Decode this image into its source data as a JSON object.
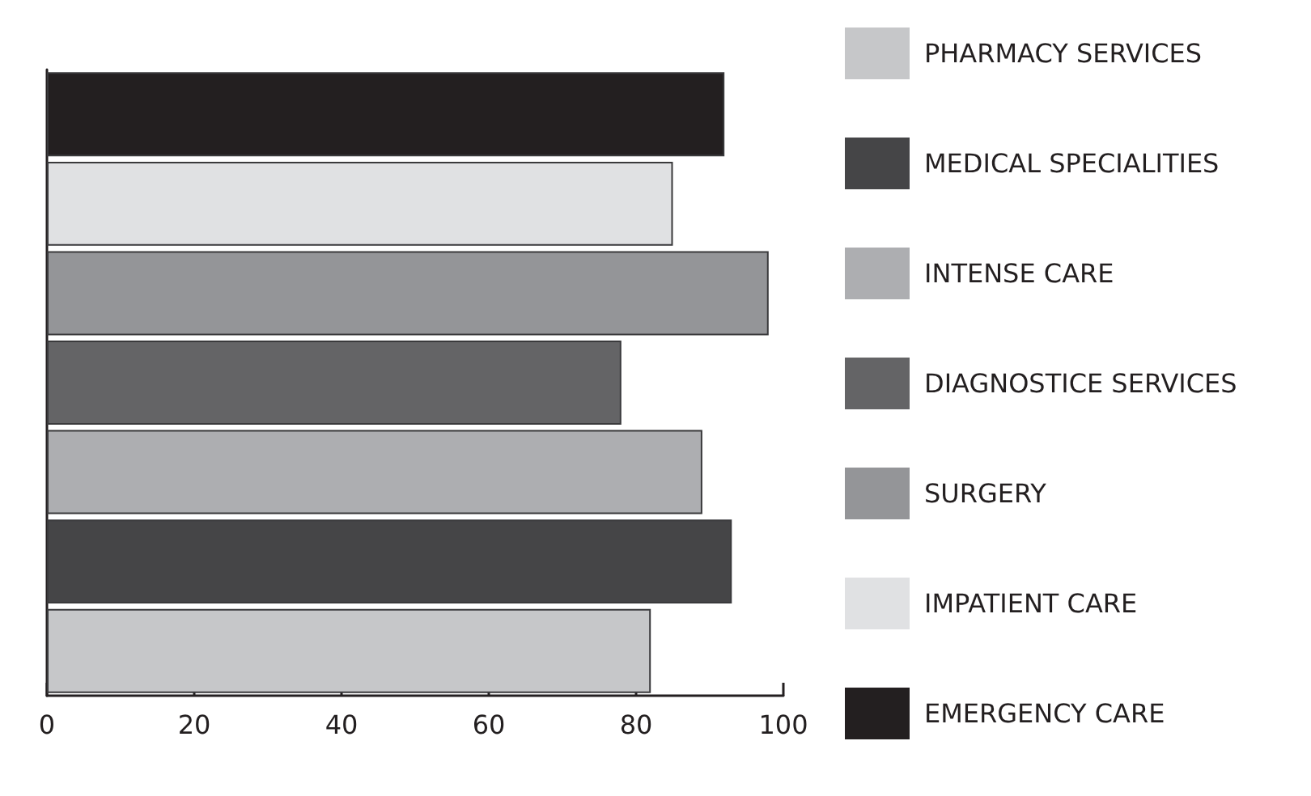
{
  "chart_data": {
    "type": "bar",
    "orientation": "horizontal",
    "categories": [
      null,
      null,
      null,
      null,
      null,
      null,
      null
    ],
    "series": [
      {
        "name": "PHARMACY SERVICES",
        "color": "#c6c7c9",
        "values": [
          null,
          null,
          null,
          null,
          null,
          null,
          82
        ]
      },
      {
        "name": "MEDICAL SPECIALITIES",
        "color": "#454547",
        "values": [
          null,
          null,
          null,
          null,
          null,
          93,
          null
        ]
      },
      {
        "name": "INTENSE CARE",
        "color": "#adaeb1",
        "values": [
          null,
          null,
          null,
          null,
          89,
          null,
          null
        ]
      },
      {
        "name": "DIAGNOSTICE SERVICES",
        "color": "#646466",
        "values": [
          null,
          null,
          null,
          78,
          null,
          null,
          null
        ]
      },
      {
        "name": "SURGERY",
        "color": "#949598",
        "values": [
          null,
          null,
          98,
          null,
          null,
          null,
          null
        ]
      },
      {
        "name": "IMPATIENT CARE",
        "color": "#e0e1e3",
        "values": [
          null,
          85,
          null,
          null,
          null,
          null,
          null
        ]
      },
      {
        "name": "EMERGENCY CARE",
        "color": "#231f20",
        "values": [
          92,
          null,
          null,
          null,
          null,
          null,
          null
        ]
      }
    ],
    "xlim": [
      0,
      100
    ],
    "xticks": [
      0,
      20,
      40,
      60,
      80,
      100
    ],
    "grid": false,
    "legend": "right"
  }
}
